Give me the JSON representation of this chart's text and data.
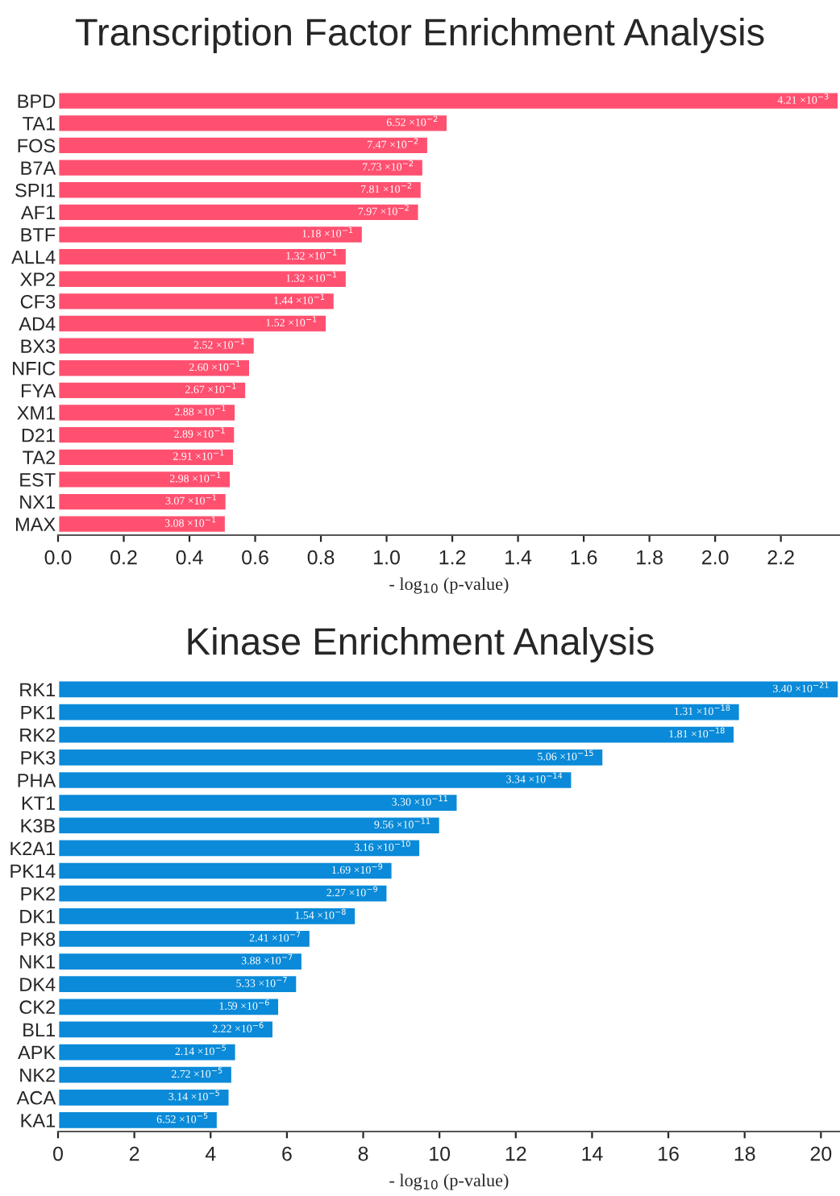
{
  "chart_data": [
    {
      "type": "bar",
      "orientation": "horizontal",
      "title": "Transcription Factor Enrichment Analysis",
      "xlabel": "- log$_{10}$ (p-value)",
      "categories": [
        "BPD",
        "TA1",
        "FOS",
        "B7A",
        "SPI1",
        "AF1",
        "BTF",
        "ALL4",
        "XP2",
        "CF3",
        "AD4",
        "BX3",
        "NFIC",
        "FYA",
        "XM1",
        "D21",
        "TA2",
        "EST",
        "NX1",
        "MAX"
      ],
      "series": [
        {
          "color": "#ff5070",
          "values": [
            2.376,
            1.186,
            1.127,
            1.112,
            1.107,
            1.099,
            0.928,
            0.879,
            0.879,
            0.842,
            0.818,
            0.599,
            0.585,
            0.573,
            0.541,
            0.539,
            0.536,
            0.526,
            0.513,
            0.511
          ]
        }
      ],
      "annotations": [
        {
          "text": "4.21 ×10$^{−3}$",
          "x": 2.376,
          "y": "BPD"
        },
        {
          "text": "6.52 ×10$^{−2}$",
          "x": 1.186,
          "y": "TA1"
        },
        {
          "text": "7.47 ×10$^{−2}$",
          "x": 1.127,
          "y": "FOS"
        },
        {
          "text": "7.73 ×10$^{−2}$",
          "x": 1.112,
          "y": "B7A"
        },
        {
          "text": "7.81 ×10$^{−2}$",
          "x": 1.107,
          "y": "SPI1"
        },
        {
          "text": "7.97 ×10$^{−2}$",
          "x": 1.099,
          "y": "AF1"
        },
        {
          "text": "1.18 ×10$^{−1}$",
          "x": 0.928,
          "y": "BTF"
        },
        {
          "text": "1.32 ×10$^{−1}$",
          "x": 0.879,
          "y": "ALL4"
        },
        {
          "text": "1.32 ×10$^{−1}$",
          "x": 0.879,
          "y": "XP2"
        },
        {
          "text": "1.44 ×10$^{−1}$",
          "x": 0.842,
          "y": "CF3"
        },
        {
          "text": "1.52 ×10$^{−1}$",
          "x": 0.818,
          "y": "AD4"
        },
        {
          "text": "2.52 ×10$^{−1}$",
          "x": 0.599,
          "y": "BX3"
        },
        {
          "text": "2.60 ×10$^{−1}$",
          "x": 0.585,
          "y": "NFIC"
        },
        {
          "text": "2.67 ×10$^{−1}$",
          "x": 0.573,
          "y": "FYA"
        },
        {
          "text": "2.88 ×10$^{−1}$",
          "x": 0.541,
          "y": "XM1"
        },
        {
          "text": "2.89 ×10$^{−1}$",
          "x": 0.539,
          "y": "D21"
        },
        {
          "text": "2.91 ×10$^{−1}$",
          "x": 0.536,
          "y": "TA2"
        },
        {
          "text": "2.98 ×10$^{−1}$",
          "x": 0.526,
          "y": "EST"
        },
        {
          "text": "3.07 ×10$^{−1}$",
          "x": 0.513,
          "y": "NX1"
        },
        {
          "text": "3.08 ×10$^{−1}$",
          "x": 0.511,
          "y": "MAX"
        }
      ],
      "xlim": [
        0,
        2.38
      ],
      "xticks": [
        {
          "value": 0,
          "label": "0.0"
        },
        {
          "value": 0.2,
          "label": "0.2"
        },
        {
          "value": 0.4,
          "label": "0.4"
        },
        {
          "value": 0.6,
          "label": "0.6"
        },
        {
          "value": 0.8,
          "label": "0.8"
        },
        {
          "value": 1.0,
          "label": "1.0"
        },
        {
          "value": 1.2,
          "label": "1.2"
        },
        {
          "value": 1.4,
          "label": "1.4"
        },
        {
          "value": 1.6,
          "label": "1.6"
        },
        {
          "value": 1.8,
          "label": "1.8"
        },
        {
          "value": 2.0,
          "label": "2.0"
        },
        {
          "value": 2.2,
          "label": "2.2"
        }
      ],
      "grid": false,
      "legend": false
    },
    {
      "type": "bar",
      "orientation": "horizontal",
      "title": "Kinase Enrichment Analysis",
      "xlabel": "- log$_{10}$ (p-value)",
      "categories": [
        "RK1",
        "PK1",
        "RK2",
        "PK3",
        "PHA",
        "KT1",
        "K3B",
        "K2A1",
        "PK14",
        "PK2",
        "DK1",
        "PK8",
        "NK1",
        "DK4",
        "CK2",
        "BL1",
        "APK",
        "NK2",
        "ACA",
        "KA1"
      ],
      "series": [
        {
          "color": "#0a8ad8",
          "values": [
            20.47,
            17.88,
            17.74,
            14.3,
            13.48,
            10.48,
            10.02,
            9.5,
            8.77,
            8.64,
            7.81,
            6.62,
            6.41,
            6.27,
            5.8,
            5.65,
            4.67,
            4.57,
            4.5,
            4.19
          ]
        }
      ],
      "annotations": [
        {
          "text": "3.40 ×10$^{−21}$",
          "x": 20.47,
          "y": "RK1"
        },
        {
          "text": "1.31 ×10$^{−18}$",
          "x": 17.88,
          "y": "PK1"
        },
        {
          "text": "1.81 ×10$^{−18}$",
          "x": 17.74,
          "y": "RK2"
        },
        {
          "text": "5.06 ×10$^{−15}$",
          "x": 14.3,
          "y": "PK3"
        },
        {
          "text": "3.34 ×10$^{−14}$",
          "x": 13.48,
          "y": "PHA"
        },
        {
          "text": "3.30 ×10$^{−11}$",
          "x": 10.48,
          "y": "KT1"
        },
        {
          "text": "9.56 ×10$^{−11}$",
          "x": 10.02,
          "y": "K3B"
        },
        {
          "text": "3.16 ×10$^{−10}$",
          "x": 9.5,
          "y": "K2A1"
        },
        {
          "text": "1.69 ×10$^{−9}$",
          "x": 8.77,
          "y": "PK14"
        },
        {
          "text": "2.27 ×10$^{−9}$",
          "x": 8.64,
          "y": "PK2"
        },
        {
          "text": "1.54 ×10$^{−8}$",
          "x": 7.81,
          "y": "DK1"
        },
        {
          "text": "2.41 ×10$^{−7}$",
          "x": 6.62,
          "y": "PK8"
        },
        {
          "text": "3.88 ×10$^{−7}$",
          "x": 6.41,
          "y": "NK1"
        },
        {
          "text": "5.33 ×10$^{−7}$",
          "x": 6.27,
          "y": "DK4"
        },
        {
          "text": "1.59 ×10$^{−6}$",
          "x": 5.8,
          "y": "CK2"
        },
        {
          "text": "2.22 ×10$^{−6}$",
          "x": 5.65,
          "y": "BL1"
        },
        {
          "text": "2.14 ×10$^{−5}$",
          "x": 4.67,
          "y": "APK"
        },
        {
          "text": "2.72 ×10$^{−5}$",
          "x": 4.57,
          "y": "NK2"
        },
        {
          "text": "3.14 ×10$^{−5}$",
          "x": 4.5,
          "y": "ACA"
        },
        {
          "text": "6.52 ×10$^{−5}$",
          "x": 4.19,
          "y": "KA1"
        }
      ],
      "xlim": [
        0,
        20.5
      ],
      "xticks": [
        0,
        2,
        4,
        6,
        8,
        10,
        12,
        14,
        16,
        18,
        20
      ],
      "grid": false,
      "legend": false
    }
  ]
}
